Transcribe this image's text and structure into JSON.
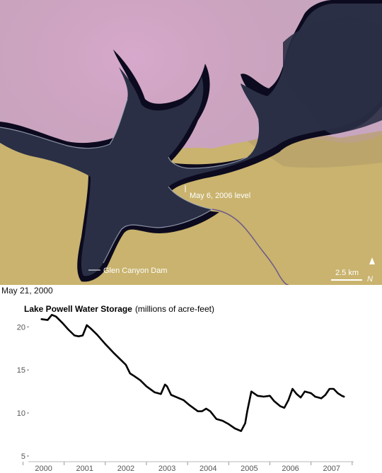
{
  "satellite": {
    "label_level": "May 6, 2006 level",
    "label_dam": "Glen Canyon Dam",
    "scale_label": "2.5 km",
    "north_label": "N",
    "date_caption": "May 21, 2000"
  },
  "colors": {
    "water": "#2a2f45",
    "highwater": "#0c0a1e",
    "sand": "#c9b36e",
    "rock": "#c99ab6",
    "line": "#000000"
  },
  "chart_data": {
    "type": "line",
    "title": "Lake Powell Water Storage",
    "subtitle": "(millions of acre-feet)",
    "xlabel": "",
    "ylabel": "",
    "xlim": [
      1999.8,
      2007.4
    ],
    "ylim": [
      5,
      22
    ],
    "x_ticks": [
      "2000",
      "2001",
      "2002",
      "2003",
      "2004",
      "2005",
      "2006",
      "2007"
    ],
    "y_ticks": [
      5,
      10,
      15,
      20
    ],
    "grid": false,
    "series": [
      {
        "x": [
          1999.95,
          2000.1,
          2000.2,
          2000.3,
          2000.45,
          2000.6,
          2000.75,
          2000.85,
          2000.95,
          2001.05,
          2001.15,
          2001.3,
          2001.5,
          2001.7,
          2001.85,
          2002.0,
          2002.1,
          2002.2,
          2002.35,
          2002.5,
          2002.7,
          2002.85,
          2002.95,
          2003.0,
          2003.1,
          2003.25,
          2003.4,
          2003.55,
          2003.75,
          2003.85,
          2003.95,
          2004.05,
          2004.2,
          2004.35,
          2004.5,
          2004.65,
          2004.8,
          2004.9,
          2004.95,
          2005.05,
          2005.2,
          2005.35,
          2005.5,
          2005.6,
          2005.75,
          2005.85,
          2005.95,
          2006.05,
          2006.15,
          2006.25,
          2006.35,
          2006.5,
          2006.6,
          2006.75,
          2006.85,
          2006.95,
          2007.05,
          2007.15,
          2007.25,
          2007.3
        ],
        "y": [
          20.9,
          20.8,
          21.4,
          21.2,
          20.5,
          19.7,
          19.0,
          18.9,
          19.0,
          20.2,
          19.8,
          19.1,
          18.0,
          17.0,
          16.3,
          15.6,
          14.6,
          14.3,
          13.8,
          13.1,
          12.4,
          12.2,
          13.3,
          13.1,
          12.1,
          11.8,
          11.5,
          10.9,
          10.2,
          10.2,
          10.5,
          10.2,
          9.3,
          9.1,
          8.7,
          8.2,
          7.9,
          8.8,
          10.2,
          12.5,
          12.0,
          11.9,
          12.0,
          11.4,
          10.8,
          10.6,
          11.5,
          12.8,
          12.2,
          11.8,
          12.5,
          12.3,
          11.9,
          11.7,
          12.1,
          12.8,
          12.8,
          12.3,
          12.0,
          11.9
        ]
      }
    ]
  }
}
